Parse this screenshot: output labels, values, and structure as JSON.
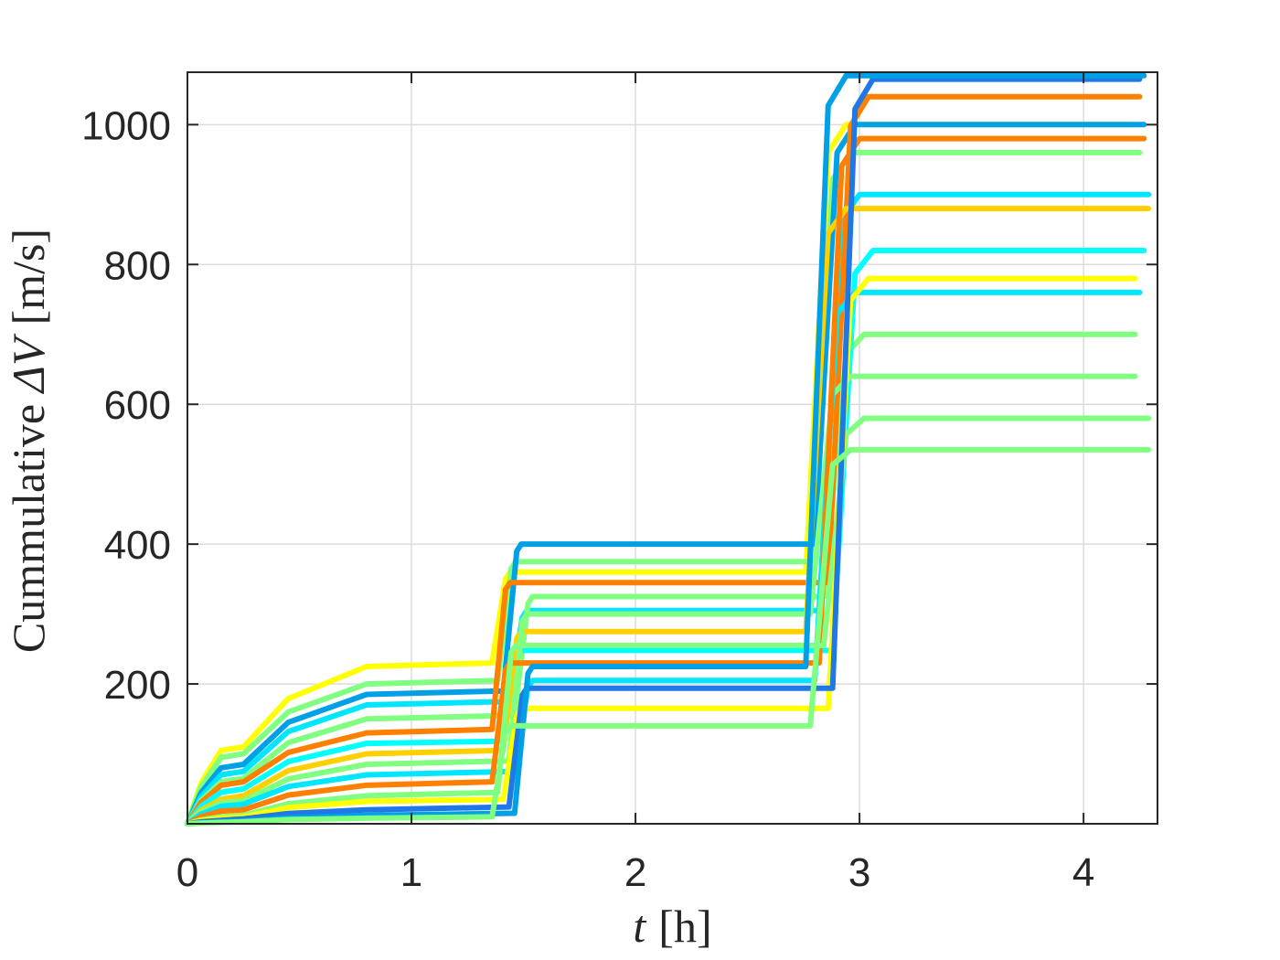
{
  "chart_data": {
    "type": "line",
    "xlabel_var": "t",
    "xlabel_unit": "[h]",
    "ylabel_prefix": "Cummulative ",
    "ylabel_var": "ΔV",
    "ylabel_unit": "[m/s]",
    "xlim": [
      0,
      4.33
    ],
    "ylim": [
      0,
      1075
    ],
    "x_ticks": [
      0,
      1,
      2,
      3,
      4
    ],
    "x_tick_labels": [
      "0",
      "1",
      "2",
      "3",
      "4"
    ],
    "y_ticks": [
      200,
      400,
      600,
      800,
      1000
    ],
    "y_tick_labels": [
      "200",
      "400",
      "600",
      "800",
      "1000"
    ],
    "grid": true,
    "series": [
      {
        "color": "#ffff00",
        "values": [
          0,
          105,
          110,
          225,
          230,
          230,
          1000,
          1000
        ]
      },
      {
        "color": "#80ff80",
        "values": [
          0,
          95,
          100,
          200,
          205,
          205,
          960,
          960
        ]
      },
      {
        "color": "#00a0e6",
        "values": [
          0,
          80,
          85,
          185,
          190,
          190,
          1000,
          1000
        ]
      },
      {
        "color": "#00e6ff",
        "values": [
          0,
          70,
          75,
          170,
          175,
          175,
          900,
          900
        ]
      },
      {
        "color": "#80ff80",
        "values": [
          0,
          60,
          65,
          150,
          155,
          155,
          700,
          700
        ]
      },
      {
        "color": "#ff8000",
        "values": [
          0,
          55,
          60,
          130,
          135,
          135,
          1040,
          1040
        ]
      },
      {
        "color": "#00ffff",
        "values": [
          0,
          45,
          50,
          115,
          118,
          118,
          820,
          820
        ]
      },
      {
        "color": "#ffd000",
        "values": [
          0,
          35,
          40,
          100,
          105,
          105,
          880,
          880
        ]
      },
      {
        "color": "#80ff80",
        "values": [
          0,
          30,
          33,
          85,
          90,
          90,
          640,
          640
        ]
      },
      {
        "color": "#00e6ff",
        "values": [
          0,
          25,
          28,
          70,
          75,
          75,
          760,
          760
        ]
      },
      {
        "color": "#ff8000",
        "values": [
          0,
          18,
          20,
          55,
          60,
          60,
          980,
          980
        ]
      },
      {
        "color": "#80ff80",
        "values": [
          0,
          10,
          12,
          40,
          45,
          45,
          580,
          580
        ]
      },
      {
        "color": "#ffff00",
        "values": [
          0,
          8,
          10,
          32,
          35,
          35,
          780,
          780
        ]
      },
      {
        "color": "#1f78e6",
        "values": [
          0,
          5,
          7,
          20,
          24,
          24,
          1065,
          1065
        ]
      },
      {
        "color": "#00a0e6",
        "values": [
          0,
          3,
          4,
          12,
          15,
          15,
          1070,
          1070
        ]
      },
      {
        "color": "#80ff80",
        "values": [
          0,
          2,
          3,
          8,
          10,
          10,
          535,
          535
        ]
      }
    ]
  }
}
